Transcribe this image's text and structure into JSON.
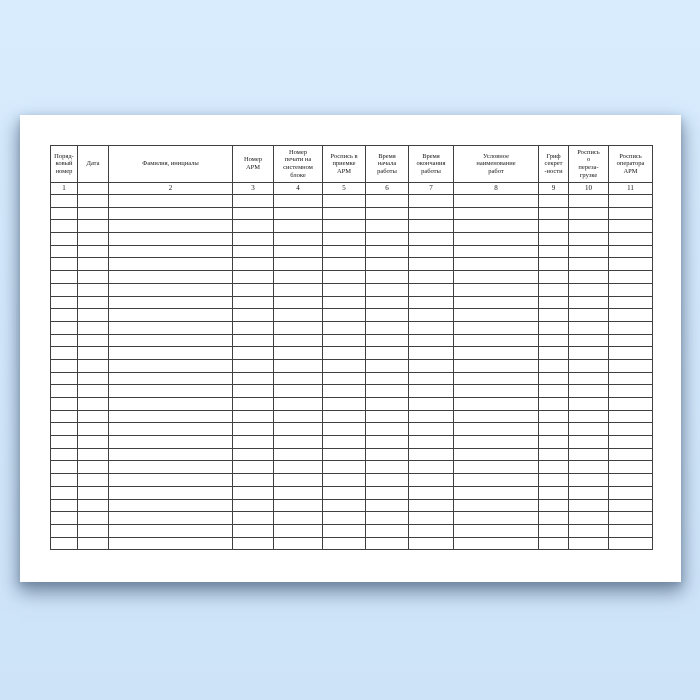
{
  "table": {
    "columns": [
      {
        "header": "Поряд-\nковый\nномер",
        "num": "1"
      },
      {
        "header": "Дата",
        "num": ""
      },
      {
        "header": "Фамилия, инициалы",
        "num": "2"
      },
      {
        "header": "Номер\nАРМ",
        "num": "3"
      },
      {
        "header": "Номер\nпечати на\nсистемном\nблоке",
        "num": "4"
      },
      {
        "header": "Роспись в\nприемке\nАРМ",
        "num": "5"
      },
      {
        "header": "Время\nначала\nработы",
        "num": "6"
      },
      {
        "header": "Время\nокончания\nработы",
        "num": "7"
      },
      {
        "header": "Условное\nнаименование\nработ",
        "num": "8"
      },
      {
        "header": "Гриф\nсекрет\n-ности",
        "num": "9"
      },
      {
        "header": "Роспись\nо\nпереза-\nгрузке",
        "num": "10"
      },
      {
        "header": "Роспись\nоператора\nАРМ",
        "num": "11"
      }
    ],
    "empty_row_count": 28
  },
  "colors": {
    "background": "#d3e8fc",
    "sheet": "#ffffff",
    "grid": "#404040",
    "text": "#151515"
  }
}
